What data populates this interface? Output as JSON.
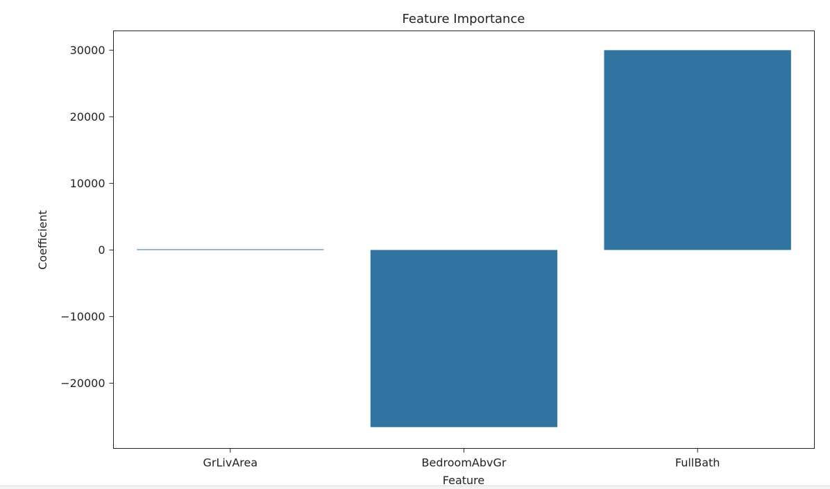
{
  "chart_data": {
    "type": "bar",
    "title": "Feature Importance",
    "xlabel": "Feature",
    "ylabel": "Coefficient",
    "categories": [
      "GrLivArea",
      "BedroomAbvGr",
      "FullBath"
    ],
    "values": [
      100,
      -26600,
      30000
    ],
    "ylim": [
      -29800,
      32900
    ],
    "yticks": [
      -20000,
      -10000,
      0,
      10000,
      20000,
      30000
    ],
    "ytick_labels": [
      "−20000",
      "−10000",
      "0",
      "10000",
      "20000",
      "30000"
    ],
    "grid": false,
    "legend": "none",
    "bar_color": "#3274a1"
  }
}
